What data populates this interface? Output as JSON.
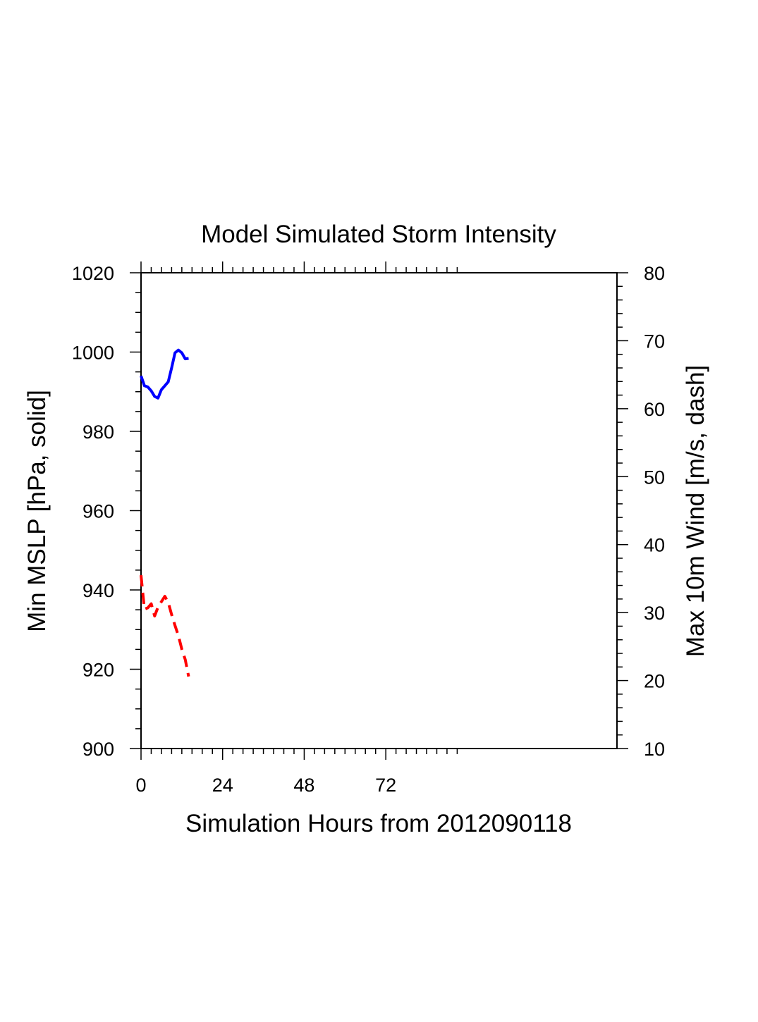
{
  "chart_data": {
    "type": "line",
    "title": "Model Simulated Storm Intensity",
    "xlabel": "Simulation Hours from 2012090118",
    "ylabel_left": "Min MSLP  [hPa, solid]",
    "ylabel_right": "Max 10m Wind  [m/s, dash]",
    "xlim": [
      0,
      140
    ],
    "ylim_left": [
      900,
      1020
    ],
    "ylim_right": [
      10,
      80
    ],
    "x_ticks": [
      0,
      24,
      48,
      72
    ],
    "x_tick_labels": [
      "0",
      "24",
      "48",
      "72"
    ],
    "y_left_ticks": [
      900,
      920,
      940,
      960,
      980,
      1000,
      1020
    ],
    "y_left_tick_labels": [
      "900",
      "920",
      "940",
      "960",
      "980",
      "1000",
      "1020"
    ],
    "y_right_ticks": [
      10,
      20,
      30,
      40,
      50,
      60,
      70,
      80
    ],
    "y_right_tick_labels": [
      "10",
      "20",
      "30",
      "40",
      "50",
      "60",
      "70",
      "80"
    ],
    "grid": false,
    "series": [
      {
        "axis": "left",
        "style": "solid",
        "color": "#0000ff",
        "x": [
          0,
          1,
          2,
          3,
          4,
          5,
          6,
          7,
          8,
          9,
          10,
          11,
          12,
          13,
          14
        ],
        "y": [
          994,
          991.5,
          991.2,
          990.2,
          988.8,
          988.4,
          990.5,
          991.5,
          992.5,
          996,
          999.8,
          1000.5,
          999.8,
          998.3,
          998.4
        ]
      },
      {
        "axis": "right",
        "style": "dash",
        "color": "#ff0000",
        "x": [
          0,
          1,
          2,
          3,
          4,
          5,
          6,
          7,
          8,
          9,
          10,
          11,
          12,
          13,
          14
        ],
        "y": [
          35.5,
          30.5,
          30.7,
          31.3,
          29.5,
          30.8,
          31.6,
          32.4,
          31.5,
          29.7,
          28.1,
          26.6,
          24.6,
          23.1,
          20.6
        ]
      }
    ]
  }
}
